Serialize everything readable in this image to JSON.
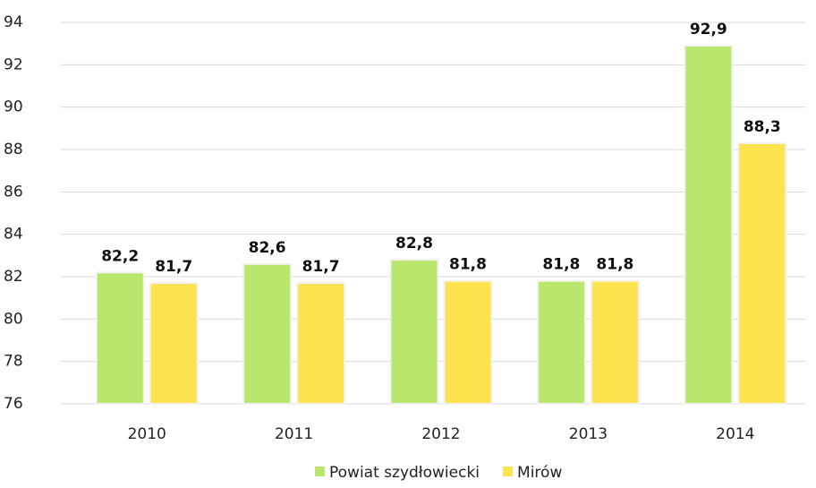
{
  "chart_data": {
    "type": "bar",
    "categories": [
      "2010",
      "2011",
      "2012",
      "2013",
      "2014"
    ],
    "series": [
      {
        "name": "Powiat szydłowiecki",
        "color": "#b9e76e",
        "values": [
          82.2,
          82.6,
          82.8,
          81.8,
          92.9
        ],
        "value_labels": [
          "82,2",
          "82,6",
          "82,8",
          "81,8",
          "92,9"
        ]
      },
      {
        "name": "Mirów",
        "color": "#fde350",
        "values": [
          81.7,
          81.7,
          81.8,
          81.8,
          88.3
        ],
        "value_labels": [
          "81,7",
          "81,7",
          "81,8",
          "81,8",
          "88,3"
        ]
      }
    ],
    "ylim": [
      76,
      94
    ],
    "yticks": [
      76,
      78,
      80,
      82,
      84,
      86,
      88,
      90,
      92,
      94
    ],
    "grid": true,
    "legend": "bottom"
  }
}
